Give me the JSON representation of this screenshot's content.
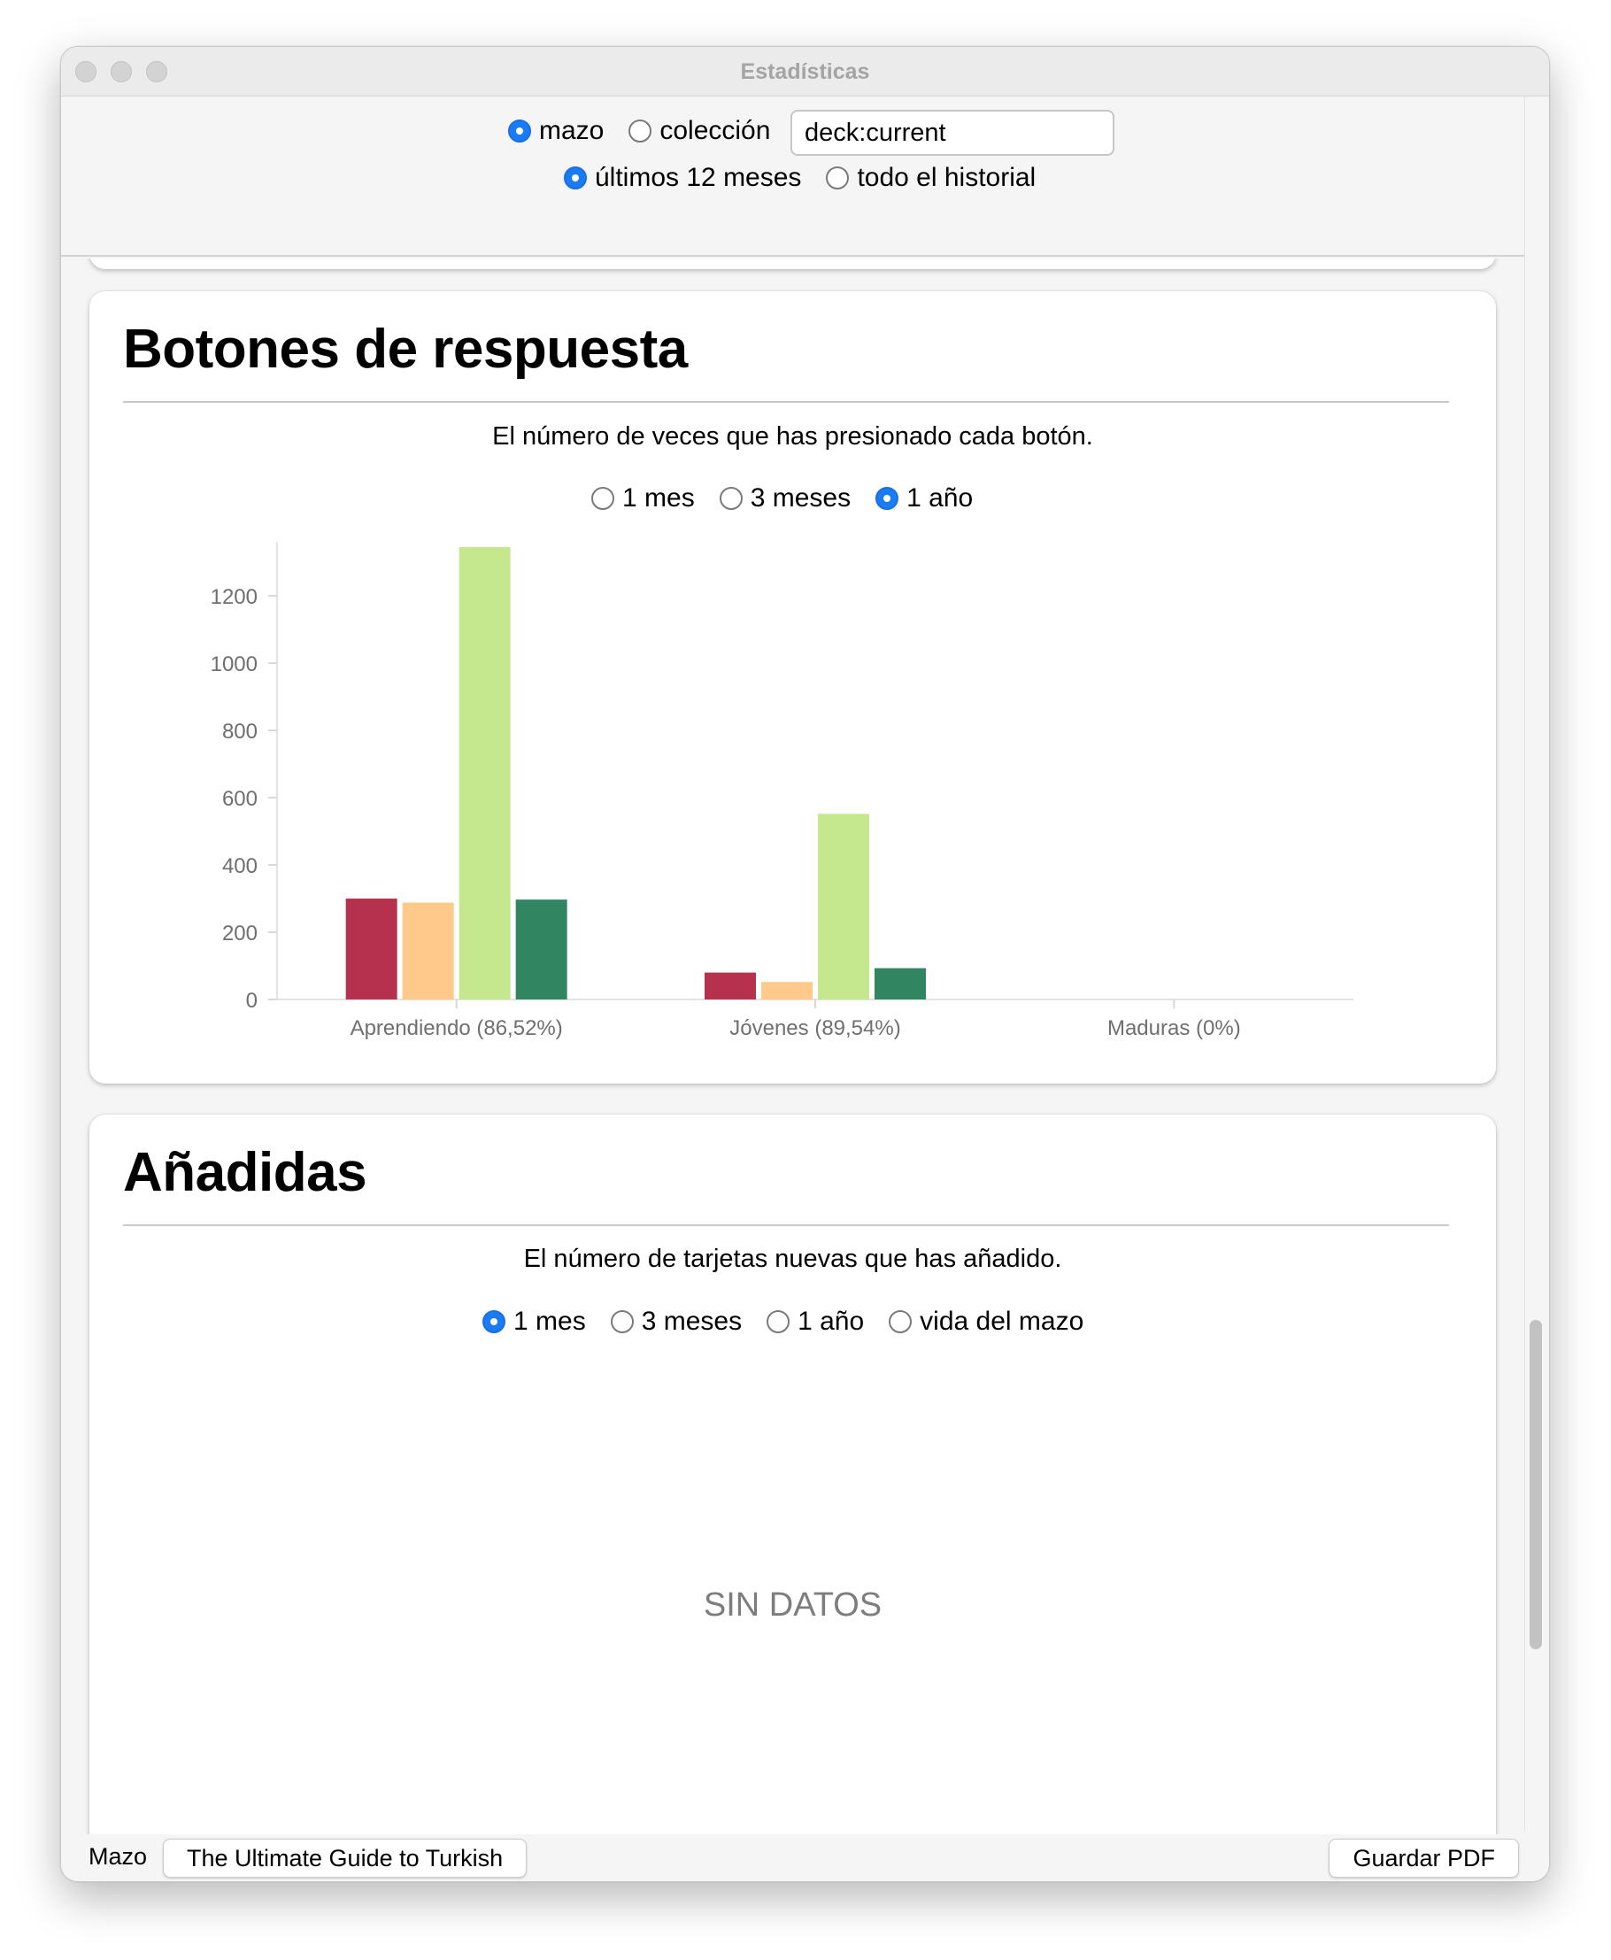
{
  "window": {
    "title": "Estadísticas"
  },
  "toolbar": {
    "scope": [
      {
        "label": "mazo",
        "checked": true
      },
      {
        "label": "colección",
        "checked": false
      }
    ],
    "search_value": "deck:current",
    "range": [
      {
        "label": "últimos 12 meses",
        "checked": true
      },
      {
        "label": "todo el historial",
        "checked": false
      }
    ]
  },
  "answer_buttons": {
    "title": "Botones de respuesta",
    "description": "El número de veces que has presionado cada botón.",
    "ranges": [
      {
        "label": "1 mes",
        "checked": false
      },
      {
        "label": "3 meses",
        "checked": false
      },
      {
        "label": "1 año",
        "checked": true
      }
    ]
  },
  "chart_data": {
    "type": "bar",
    "categories": [
      "Aprendiendo (86,52%)",
      "Jóvenes (89,54%)",
      "Maduras (0%)"
    ],
    "series": [
      {
        "values": [
          300,
          80,
          0
        ],
        "color": "#b5314d"
      },
      {
        "values": [
          288,
          52,
          0
        ],
        "color": "#fdca8b"
      },
      {
        "values": [
          1345,
          552,
          0
        ],
        "color": "#c5e88f"
      },
      {
        "values": [
          297,
          93,
          0
        ],
        "color": "#328561"
      }
    ],
    "yticks": [
      0,
      200,
      400,
      600,
      800,
      1000,
      1200
    ],
    "ylim": [
      0,
      1345
    ],
    "grid": false
  },
  "added": {
    "title": "Añadidas",
    "description": "El número de tarjetas nuevas que has añadido.",
    "ranges": [
      {
        "label": "1 mes",
        "checked": true
      },
      {
        "label": "3 meses",
        "checked": false
      },
      {
        "label": "1 año",
        "checked": false
      },
      {
        "label": "vida del mazo",
        "checked": false
      }
    ],
    "empty_text": "SIN DATOS"
  },
  "footer": {
    "deck_label": "Mazo",
    "deck_button": "The Ultimate Guide to Turkish",
    "save_button": "Guardar PDF"
  }
}
